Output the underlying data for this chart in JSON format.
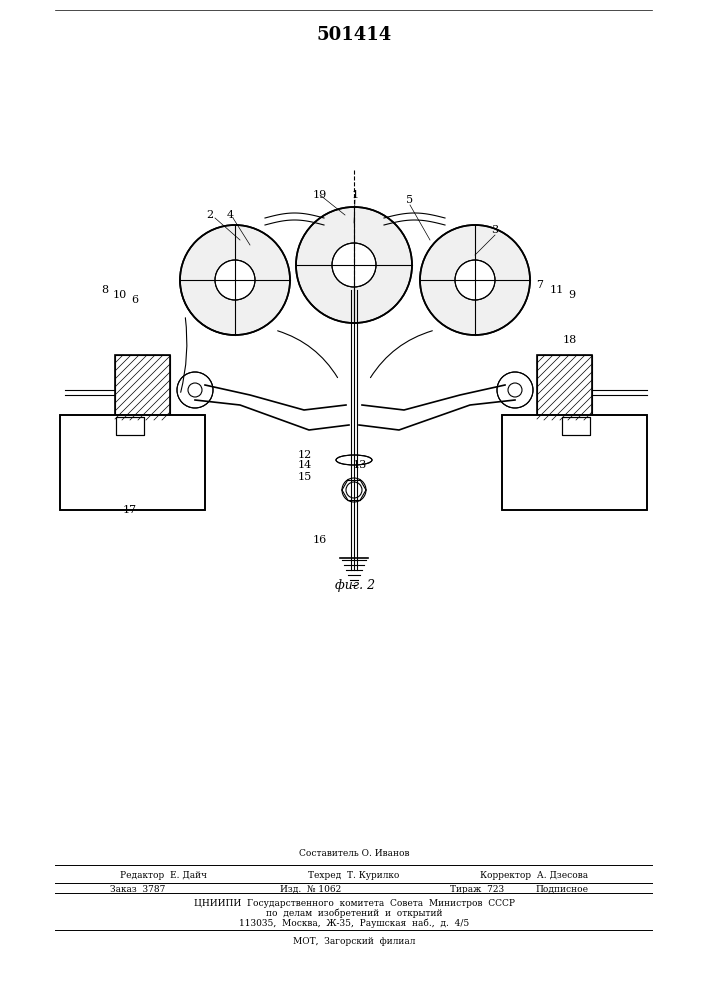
{
  "title": "501414",
  "fig_label": "фиг. 2",
  "bg_color": "#ffffff",
  "line_color": "#000000",
  "header_line1": "Составитель О. Иванов",
  "header_line2_left": "Редактор  Е. Дайч",
  "header_line2_center": "Техред  Т. Курилко",
  "header_line2_right": "Корректор  А. Дзесова",
  "footer_line1_left": "Заказ  3787",
  "footer_line1_c1": "Изд.  № 1062",
  "footer_line1_c2": "Тираж  723",
  "footer_line1_right": "Подписное",
  "footer_line2": "ЦНИИПИ  Государственного  комитета  Совета  Министров  СССР",
  "footer_line3": "по  делам  изобретений  и  открытий",
  "footer_line4": "113035,  Москва,  Ж-35,  Раушская  наб.,  д.  4/5",
  "footer_line5": "МОТ,  Загорский  филиал"
}
